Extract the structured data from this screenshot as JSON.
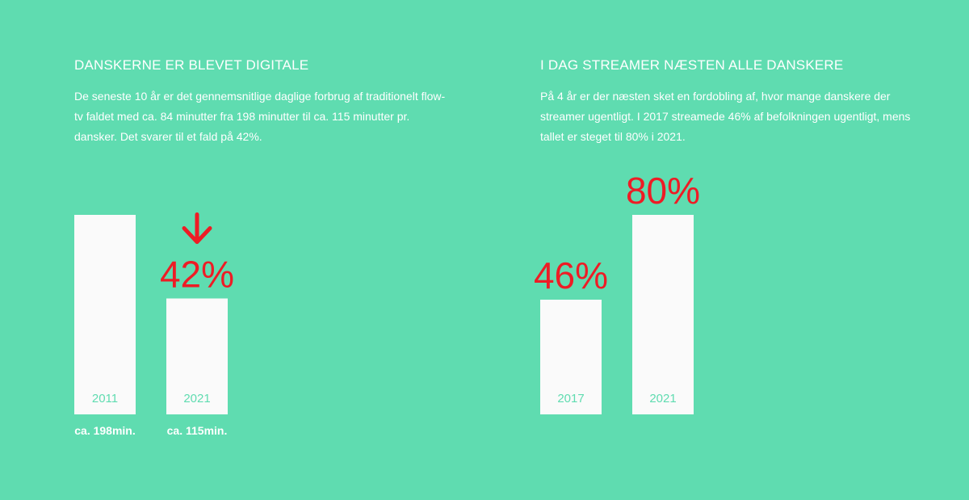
{
  "colors": {
    "background": "#5fdcb0",
    "bar": "#fafafa",
    "accent": "#ee1c25",
    "text": "#ffffff"
  },
  "left": {
    "heading": "DANSKERNE ER BLEVET DIGITALE",
    "body": "De seneste 10 år er det gennemsnitlige daglige forbrug af traditionelt flow-tv faldet med ca. 84 minutter fra 198 minutter til ca. 115 minutter pr. dansker. Det svarer til et fald på 42%."
  },
  "right": {
    "heading": "I DAG STREAMER NÆSTEN ALLE DANSKERE",
    "body": "På 4 år er der næsten sket en fordobling af, hvor mange danskere der streamer ugentligt. I 2017 streamede 46% af befolkningen ugentligt, mens tallet er steget til 80% i 2021."
  },
  "chart_data": [
    {
      "type": "bar",
      "categories": [
        "2011",
        "2021"
      ],
      "values": [
        198,
        115
      ],
      "value_labels": [
        "",
        "42%"
      ],
      "sub_labels": [
        "ca. 198min.",
        "ca. 115min."
      ],
      "annotation": "down-arrow",
      "ylim": [
        0,
        198
      ]
    },
    {
      "type": "bar",
      "categories": [
        "2017",
        "2021"
      ],
      "values": [
        46,
        80
      ],
      "value_labels": [
        "46%",
        "80%"
      ],
      "sub_labels": [
        "",
        ""
      ],
      "ylim": [
        0,
        80
      ]
    }
  ]
}
